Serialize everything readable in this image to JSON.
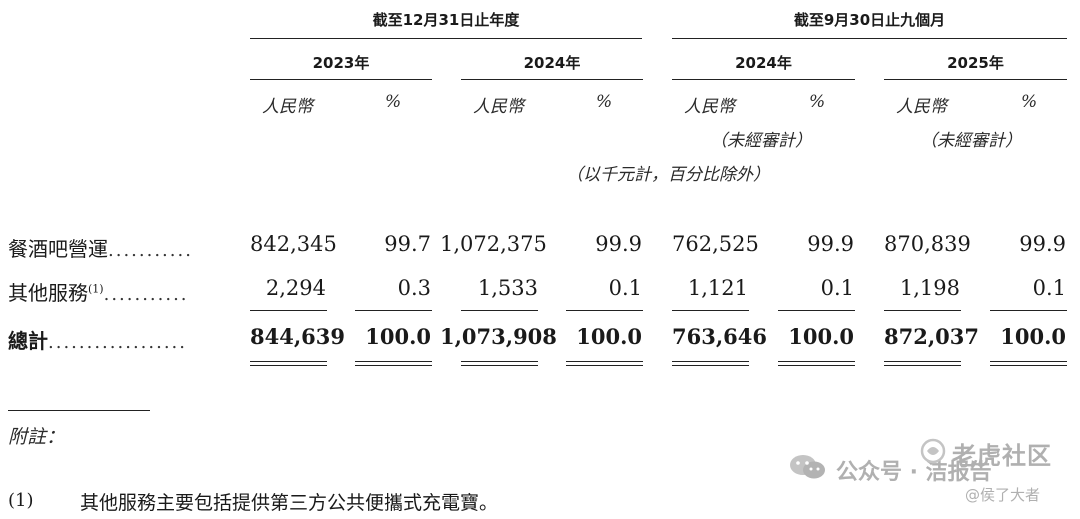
{
  "header": {
    "group_year": "截至12月31日止年度",
    "group_nine": "截至9月30日止九個月",
    "years": [
      "2023年",
      "2024年",
      "2024年",
      "2025年"
    ],
    "currency": "人民幣",
    "percent": "%",
    "unaudited": "（未經審計）",
    "unit_note": "（以千元計，百分比除外）"
  },
  "rows": [
    {
      "label": "餐酒吧營運",
      "sup": "",
      "dots": "...........",
      "values": [
        "842,345",
        "99.7",
        "1,072,375",
        "99.9",
        "762,525",
        "99.9",
        "870,839",
        "99.9"
      ]
    },
    {
      "label": "其他服務",
      "sup": "(1)",
      "dots": "...........",
      "values": [
        "2,294",
        "0.3",
        "1,533",
        "0.1",
        "1,121",
        "0.1",
        "1,198",
        "0.1"
      ]
    },
    {
      "label": "總計",
      "sup": "",
      "dots": "..................",
      "values": [
        "844,639",
        "100.0",
        "1,073,908",
        "100.0",
        "763,646",
        "100.0",
        "872,037",
        "100.0"
      ]
    }
  ],
  "notes": {
    "title": "附註：",
    "items": [
      {
        "marker": "(1)",
        "text": "其他服務主要包括提供第三方公共便攜式充電寶。"
      }
    ]
  },
  "watermark": {
    "account": "公众号 · 洁报告",
    "community": "老虎社区",
    "author": "@侯了大者"
  }
}
